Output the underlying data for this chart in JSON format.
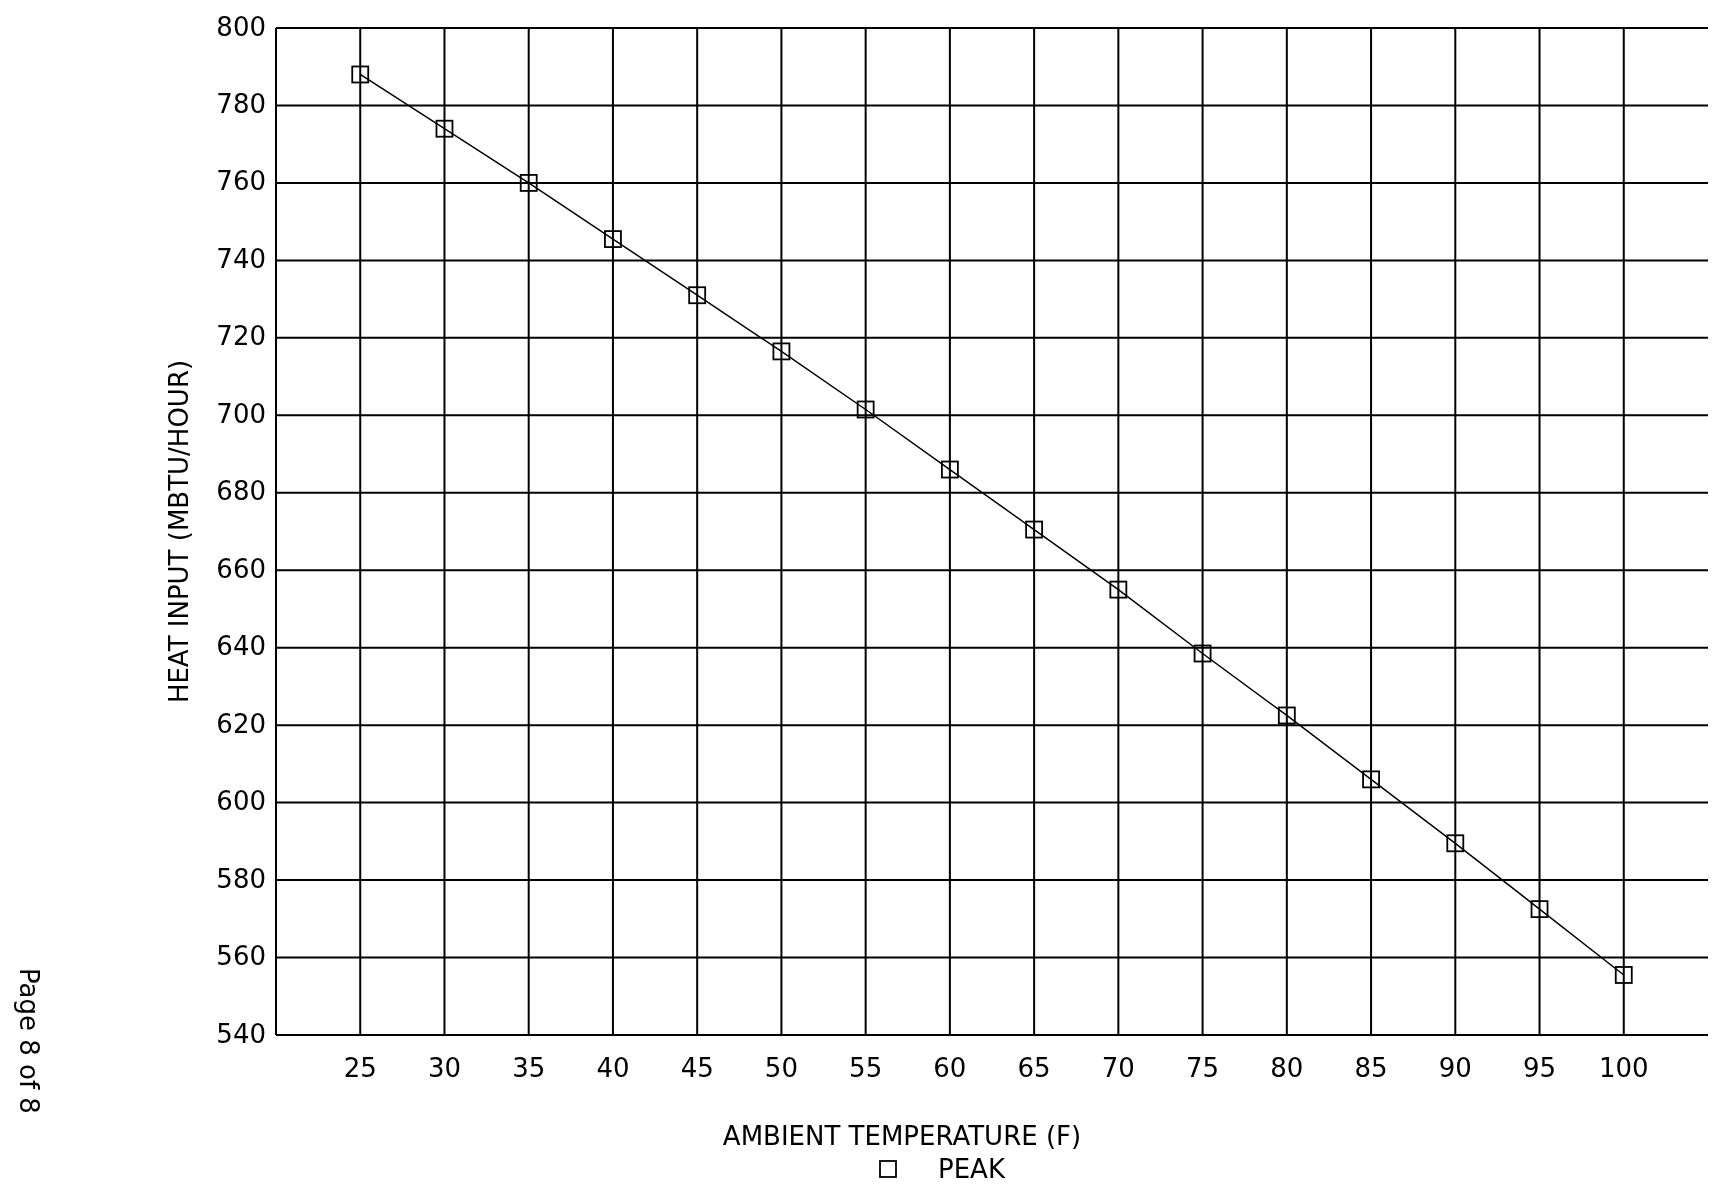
{
  "chart_data": {
    "type": "line",
    "xlabel": "AMBIENT TEMPERATURE (F)",
    "ylabel": "HEAT INPUT (MBTU/HOUR)",
    "x": [
      25,
      30,
      35,
      40,
      45,
      50,
      55,
      60,
      65,
      70,
      75,
      80,
      85,
      90,
      95,
      100
    ],
    "series": [
      {
        "name": "PEAK",
        "color": "#000000",
        "values": [
          788,
          774,
          760,
          745.5,
          731,
          716.5,
          701.5,
          686,
          670.5,
          655,
          638.5,
          622.5,
          606,
          589.5,
          572.5,
          555.5
        ]
      }
    ],
    "xlim": [
      20,
      105
    ],
    "xticks": [
      25,
      30,
      35,
      40,
      45,
      50,
      55,
      60,
      65,
      70,
      75,
      80,
      85,
      90,
      95,
      100
    ],
    "ylim": [
      540,
      800
    ],
    "yticks": [
      540,
      560,
      580,
      600,
      620,
      640,
      660,
      680,
      700,
      720,
      740,
      760,
      780,
      800
    ],
    "grid": true,
    "legend": "bottom",
    "marker": "square",
    "line_style": "solid",
    "annotations": [
      "Page 8 of 8"
    ]
  }
}
